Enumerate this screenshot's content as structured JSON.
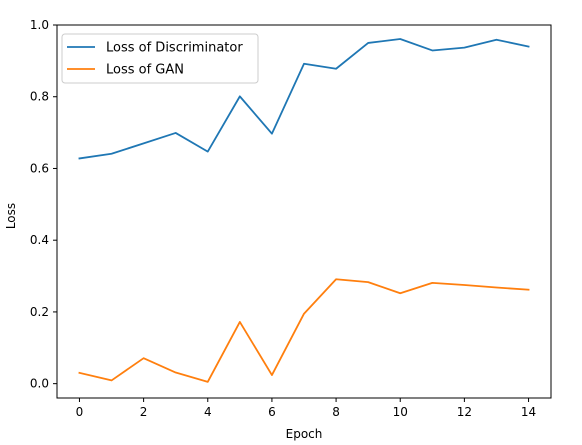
{
  "chart_data": {
    "type": "line",
    "title": "",
    "xlabel": "Epoch",
    "ylabel": "Loss",
    "xlim": [
      -0.7,
      14.7
    ],
    "ylim": [
      -0.04,
      1.0
    ],
    "xticks": [
      0,
      2,
      4,
      6,
      8,
      10,
      12,
      14
    ],
    "yticks": [
      0.0,
      0.2,
      0.4,
      0.6,
      0.8,
      1.0
    ],
    "xtick_labels": [
      "0",
      "2",
      "4",
      "6",
      "8",
      "10",
      "12",
      "14"
    ],
    "ytick_labels": [
      "0.0",
      "0.2",
      "0.4",
      "0.6",
      "0.8",
      "1.0"
    ],
    "grid": false,
    "legend_position": "top-left",
    "x": [
      0,
      1,
      2,
      3,
      4,
      5,
      6,
      7,
      8,
      9,
      10,
      11,
      12,
      13,
      14
    ],
    "series": [
      {
        "name": "Loss of Discriminator",
        "color": "#1f77b4",
        "values": [
          0.628,
          0.641,
          0.67,
          0.699,
          0.647,
          0.801,
          0.697,
          0.892,
          0.878,
          0.95,
          0.961,
          0.929,
          0.937,
          0.959,
          0.94
        ]
      },
      {
        "name": "Loss of GAN",
        "color": "#ff7f0e",
        "values": [
          0.03,
          0.009,
          0.071,
          0.031,
          0.005,
          0.172,
          0.024,
          0.195,
          0.291,
          0.283,
          0.252,
          0.281,
          0.275,
          0.268,
          0.262
        ]
      }
    ]
  }
}
